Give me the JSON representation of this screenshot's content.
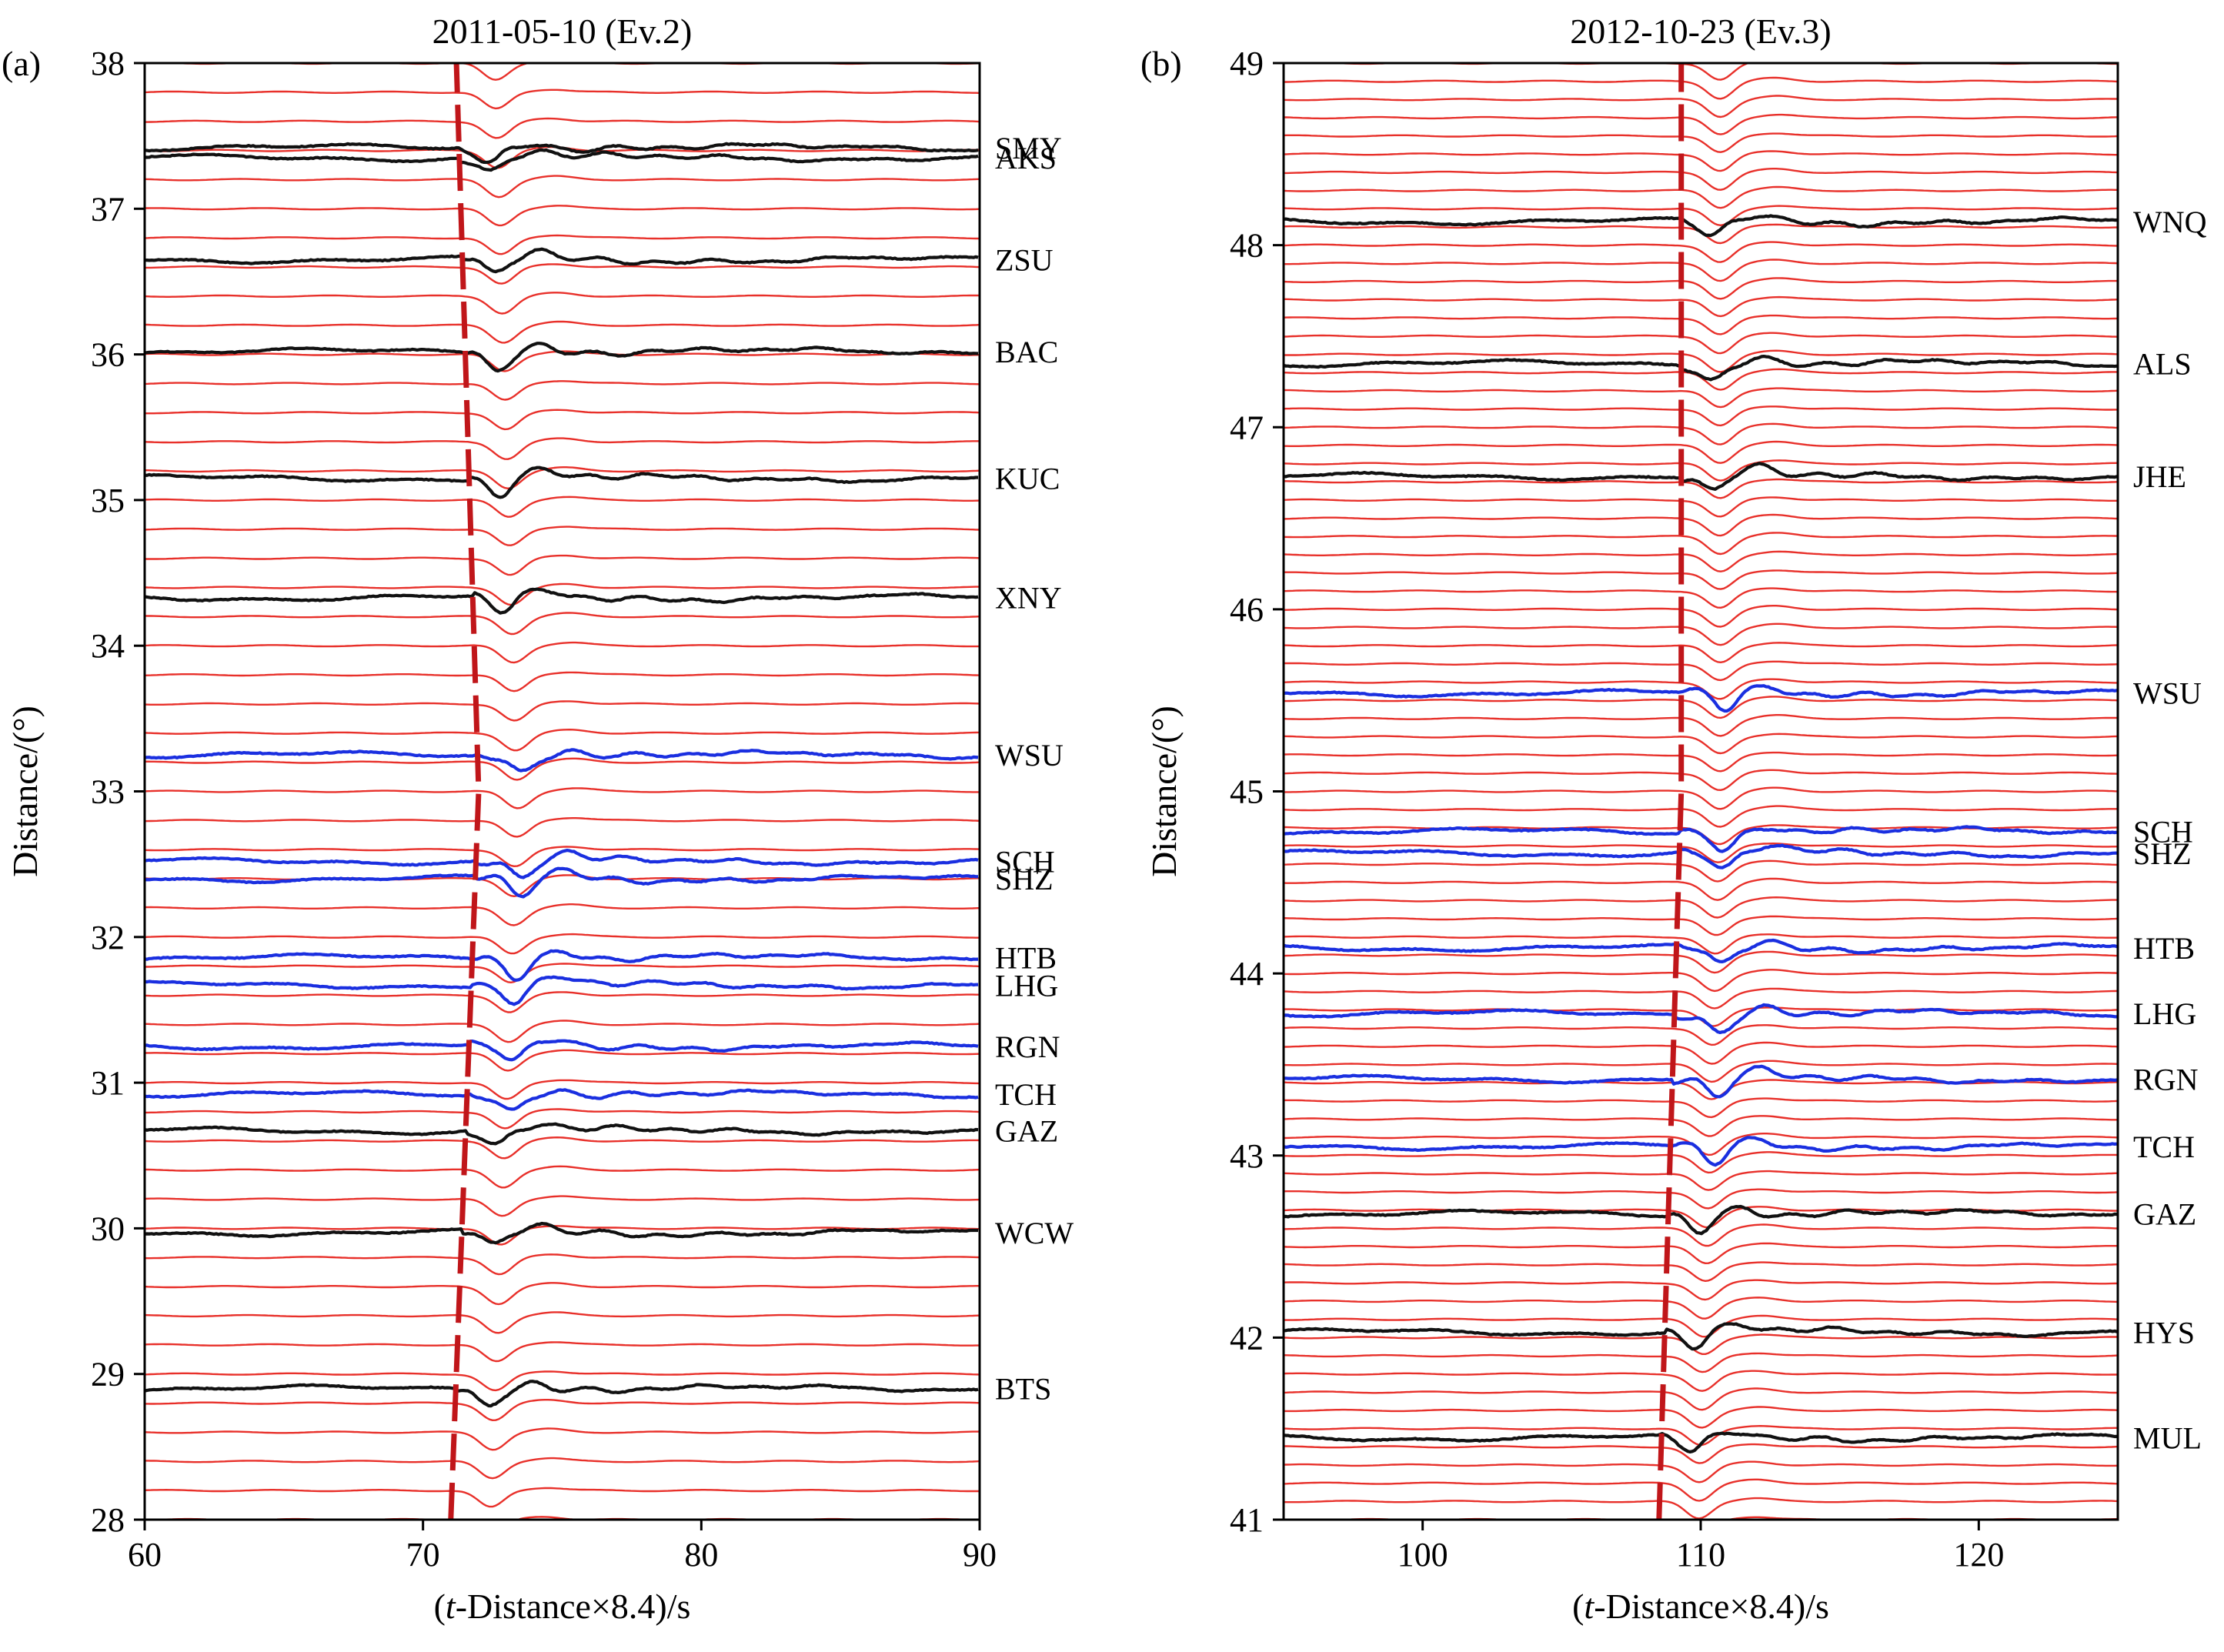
{
  "chart_data": [
    {
      "type": "line",
      "panel_label": "(a)",
      "title": "2011-05-10 (Ev.2)",
      "xlabel_pre": "(",
      "xlabel_italic": "t",
      "xlabel_post": "-Distance×8.4)/s",
      "ylabel": "Distance/(°)",
      "xlim": [
        60,
        90
      ],
      "ylim": [
        28,
        38
      ],
      "xticks": [
        60,
        70,
        80,
        90
      ],
      "yticks": [
        28,
        29,
        30,
        31,
        32,
        33,
        34,
        35,
        36,
        37,
        38
      ],
      "synthetic_spacing_deg": 0.2,
      "synthetic_color": "#e8302a",
      "arrival_line": {
        "color": "#c0161a",
        "points": [
          [
            71.0,
            28.0
          ],
          [
            72.0,
            33.0
          ],
          [
            71.2,
            38.0
          ]
        ]
      },
      "arrival_model": {
        "base": 71.0,
        "peak": 72.0,
        "peak_dist": 33.0,
        "top": 71.2
      },
      "stations": [
        {
          "name": "SMY",
          "dist": 37.42,
          "color": "#111111"
        },
        {
          "name": "AKS",
          "dist": 37.35,
          "color": "#111111"
        },
        {
          "name": "ZSU",
          "dist": 36.65,
          "color": "#111111"
        },
        {
          "name": "BAC",
          "dist": 36.02,
          "color": "#111111"
        },
        {
          "name": "KUC",
          "dist": 35.15,
          "color": "#111111"
        },
        {
          "name": "XNY",
          "dist": 34.33,
          "color": "#111111"
        },
        {
          "name": "WSU",
          "dist": 33.25,
          "color": "#1a2fe0"
        },
        {
          "name": "SCH",
          "dist": 32.52,
          "color": "#1a2fe0"
        },
        {
          "name": "SHZ",
          "dist": 32.4,
          "color": "#1a2fe0"
        },
        {
          "name": "HTB",
          "dist": 31.86,
          "color": "#1a2fe0"
        },
        {
          "name": "LHG",
          "dist": 31.67,
          "color": "#1a2fe0"
        },
        {
          "name": "RGN",
          "dist": 31.25,
          "color": "#1a2fe0"
        },
        {
          "name": "TCH",
          "dist": 30.92,
          "color": "#1a2fe0"
        },
        {
          "name": "GAZ",
          "dist": 30.67,
          "color": "#111111"
        },
        {
          "name": "WCW",
          "dist": 29.97,
          "color": "#111111"
        },
        {
          "name": "BTS",
          "dist": 28.9,
          "color": "#111111"
        }
      ]
    },
    {
      "type": "line",
      "panel_label": "(b)",
      "title": "2012-10-23 (Ev.3)",
      "xlabel_pre": "(",
      "xlabel_italic": "t",
      "xlabel_post": "-Distance×8.4)/s",
      "ylabel": "Distance/(°)",
      "xlim": [
        95,
        125
      ],
      "ylim": [
        41,
        49
      ],
      "xticks": [
        100,
        110,
        120
      ],
      "yticks": [
        41,
        42,
        43,
        44,
        45,
        46,
        47,
        48,
        49
      ],
      "synthetic_spacing_deg": 0.1,
      "synthetic_color": "#e8302a",
      "arrival_line": {
        "color": "#c0161a",
        "points": [
          [
            108.5,
            41.0
          ],
          [
            109.3,
            45.0
          ],
          [
            109.3,
            49.0
          ]
        ]
      },
      "arrival_model": {
        "base": 108.5,
        "peak": 109.3,
        "peak_dist": 45.0,
        "top": 109.3
      },
      "stations": [
        {
          "name": "WNQ",
          "dist": 48.13,
          "color": "#111111"
        },
        {
          "name": "ALS",
          "dist": 47.35,
          "color": "#111111"
        },
        {
          "name": "JHE",
          "dist": 46.73,
          "color": "#111111"
        },
        {
          "name": "WSU",
          "dist": 45.54,
          "color": "#1a2fe0"
        },
        {
          "name": "SCH",
          "dist": 44.78,
          "color": "#1a2fe0"
        },
        {
          "name": "SHZ",
          "dist": 44.66,
          "color": "#1a2fe0"
        },
        {
          "name": "HTB",
          "dist": 44.14,
          "color": "#1a2fe0"
        },
        {
          "name": "LHG",
          "dist": 43.78,
          "color": "#1a2fe0"
        },
        {
          "name": "RGN",
          "dist": 43.42,
          "color": "#1a2fe0"
        },
        {
          "name": "TCH",
          "dist": 43.05,
          "color": "#1a2fe0"
        },
        {
          "name": "GAZ",
          "dist": 42.68,
          "color": "#111111"
        },
        {
          "name": "HYS",
          "dist": 42.03,
          "color": "#111111"
        },
        {
          "name": "MUL",
          "dist": 41.45,
          "color": "#111111"
        }
      ]
    }
  ]
}
